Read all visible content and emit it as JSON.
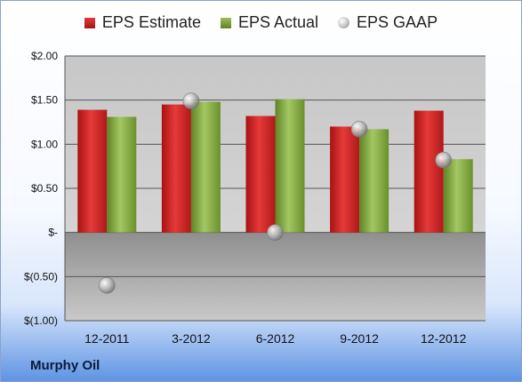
{
  "company": "Murphy Oil",
  "colors": {
    "estimate": "#c81e1e",
    "actual": "#7ea33d",
    "gaap": "#b5b5b5"
  },
  "chart_data": {
    "type": "bar",
    "categories": [
      "12-2011",
      "3-2012",
      "6-2012",
      "9-2012",
      "12-2012"
    ],
    "series": [
      {
        "name": "EPS Estimate",
        "values": [
          1.39,
          1.45,
          1.32,
          1.2,
          1.38
        ]
      },
      {
        "name": "EPS Actual",
        "values": [
          1.31,
          1.48,
          1.51,
          1.17,
          0.83
        ]
      },
      {
        "name": "EPS GAAP",
        "type": "scatter",
        "values": [
          -0.6,
          1.49,
          0.0,
          1.17,
          0.82
        ]
      }
    ],
    "ylim": [
      -1.0,
      2.0
    ],
    "yticks": [
      2.0,
      1.5,
      1.0,
      0.5,
      0.0,
      -0.5,
      -1.0
    ],
    "ytick_labels": [
      "$2.00",
      "$1.50",
      "$1.00",
      "$0.50",
      "$-",
      "$(0.50)",
      "$(1.00)"
    ],
    "grid": true,
    "legend": "top"
  }
}
